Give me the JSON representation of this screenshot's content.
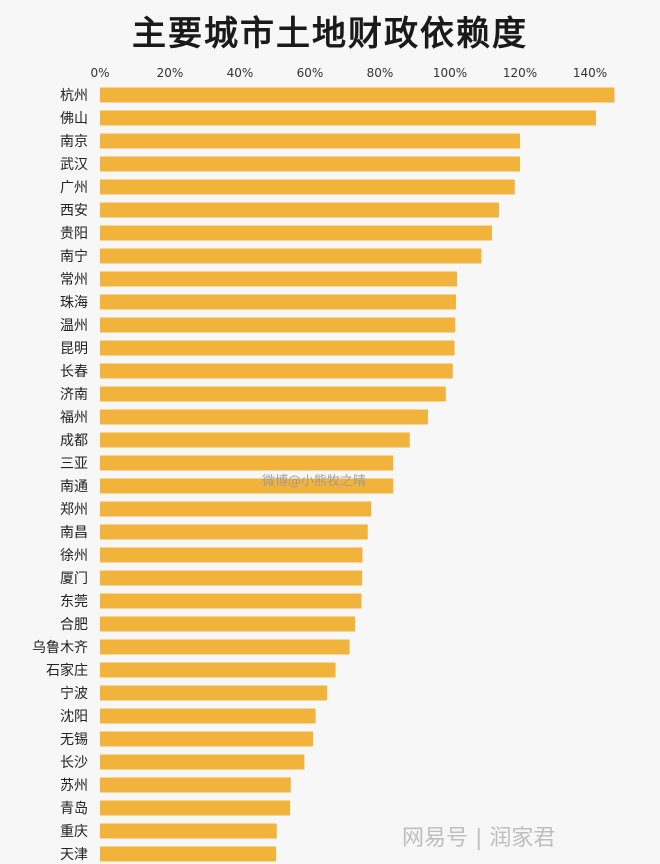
{
  "chart_data": {
    "type": "bar",
    "orientation": "horizontal",
    "title": "主要城市土地财政依赖度",
    "xlabel": "",
    "ylabel": "",
    "xlim": [
      0,
      150
    ],
    "xticks": [
      "0%",
      "20%",
      "40%",
      "60%",
      "80%",
      "100%",
      "120%",
      "140%"
    ],
    "grid": false,
    "categories": [
      "杭州",
      "佛山",
      "南京",
      "武汉",
      "广州",
      "西安",
      "贵阳",
      "南宁",
      "常州",
      "珠海",
      "温州",
      "昆明",
      "长春",
      "济南",
      "福州",
      "成都",
      "三亚",
      "南通",
      "郑州",
      "南昌",
      "徐州",
      "厦门",
      "东莞",
      "合肥",
      "乌鲁木齐",
      "石家庄",
      "宁波",
      "沈阳",
      "无锡",
      "长沙",
      "苏州",
      "青岛",
      "重庆",
      "天津"
    ],
    "values": [
      147,
      141.7,
      120,
      120,
      118.5,
      114,
      112,
      109,
      102,
      101.7,
      101.5,
      101.3,
      100.8,
      98.8,
      93.7,
      88.5,
      83.8,
      83.8,
      77.5,
      76.5,
      75,
      74.9,
      74.7,
      72.9,
      71.3,
      67.3,
      64.9,
      61.6,
      60.9,
      58.4,
      54.5,
      54.3,
      50.5,
      50.3
    ],
    "bar_color": "#f2b33d"
  },
  "watermarks": {
    "center": "微博@小熊牧之晴",
    "corner": "网易号 | 润家君"
  }
}
